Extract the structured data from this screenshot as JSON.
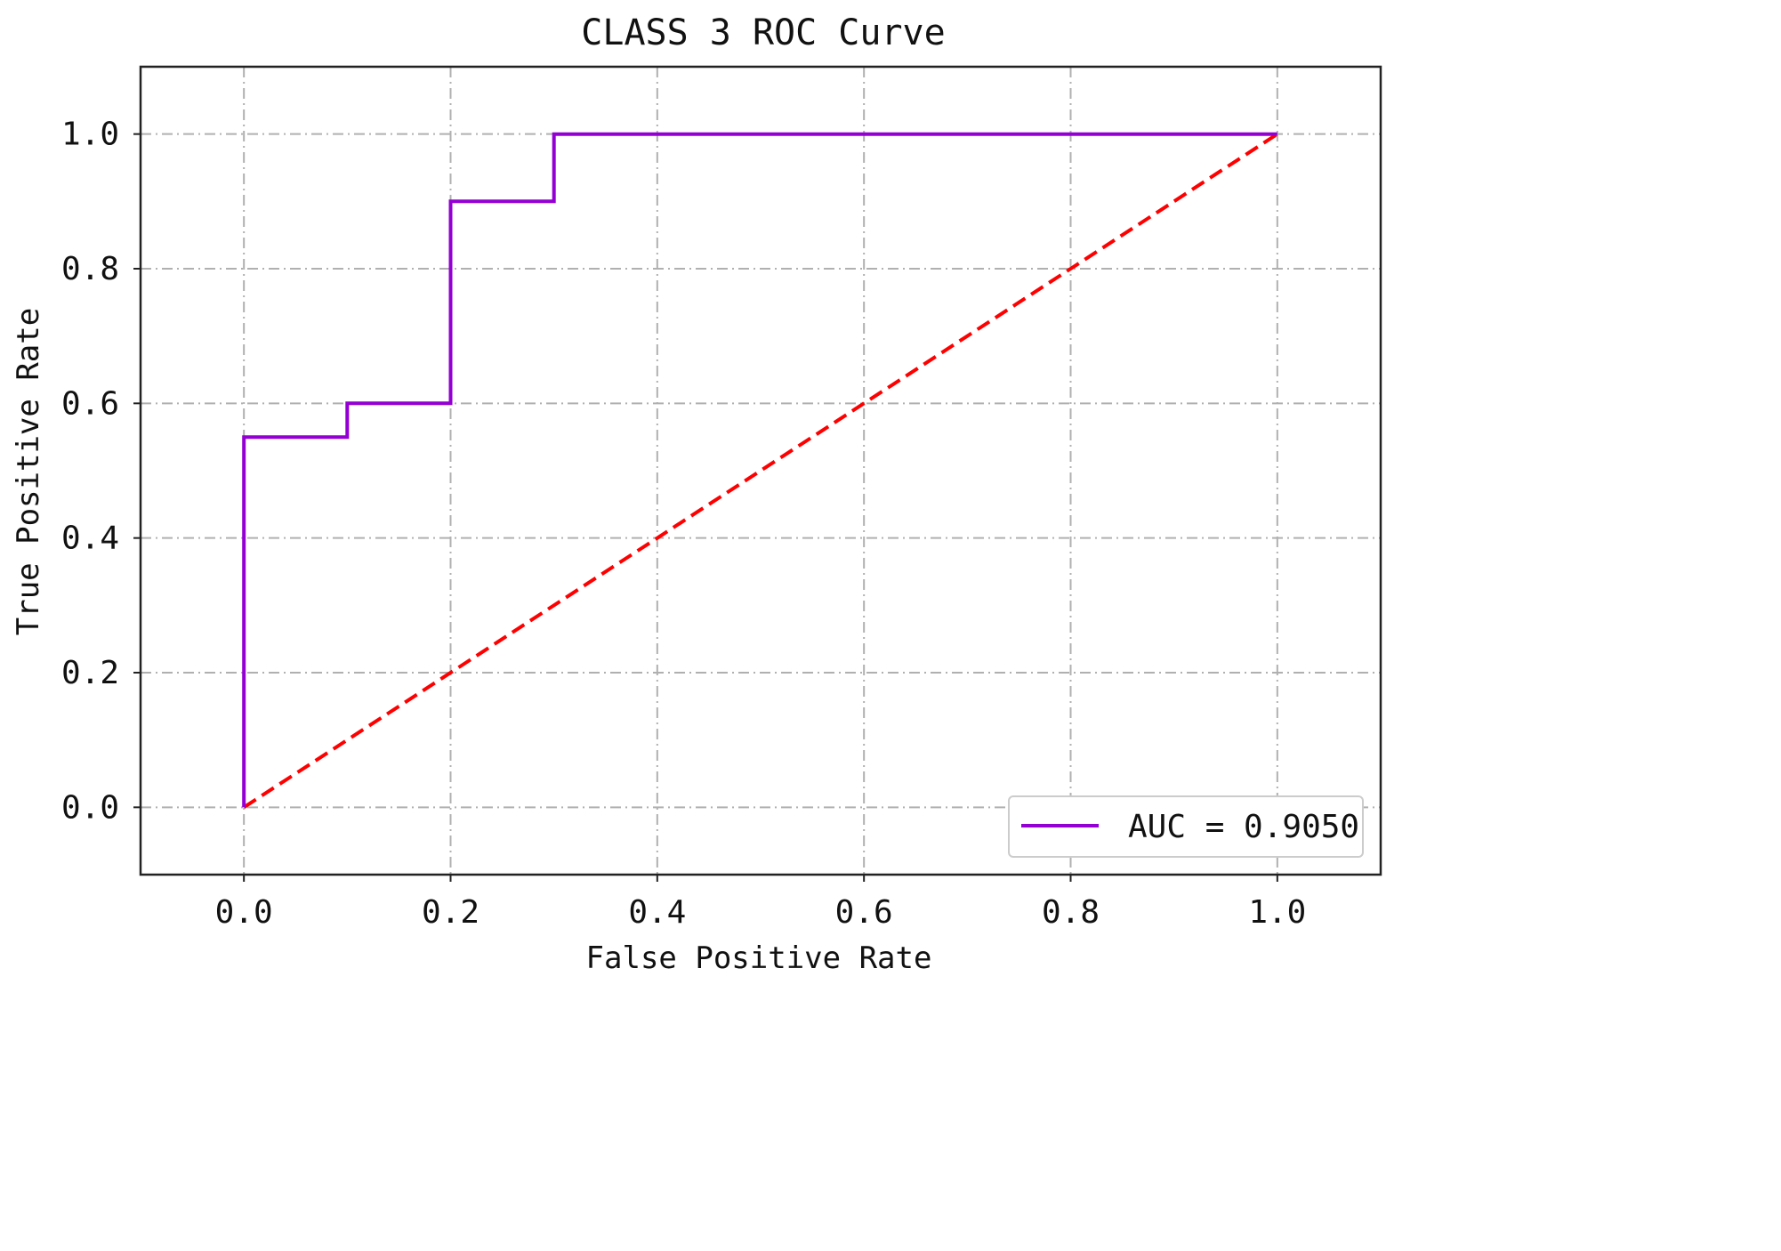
{
  "chart_data": {
    "type": "line",
    "title": "CLASS 3 ROC Curve",
    "xlabel": "False Positive Rate",
    "ylabel": "True Positive Rate",
    "xlim": [
      -0.1,
      1.1
    ],
    "ylim": [
      -0.1,
      1.1
    ],
    "xticks": [
      "0.0",
      "0.2",
      "0.4",
      "0.6",
      "0.8",
      "1.0"
    ],
    "yticks": [
      "0.0",
      "0.2",
      "0.4",
      "0.6",
      "0.8",
      "1.0"
    ],
    "grid": true,
    "legend_position": "bottom-right",
    "series": [
      {
        "name": "AUC = 0.9050",
        "color": "#9400d3",
        "style": "solid",
        "x": [
          0.0,
          0.0,
          0.1,
          0.1,
          0.2,
          0.2,
          0.3,
          0.3,
          1.0
        ],
        "y": [
          0.0,
          0.55,
          0.55,
          0.6,
          0.6,
          0.9,
          0.9,
          1.0,
          1.0
        ]
      },
      {
        "color": "#ff0000",
        "style": "dashed",
        "x": [
          0.0,
          1.0
        ],
        "y": [
          0.0,
          1.0
        ]
      }
    ]
  }
}
